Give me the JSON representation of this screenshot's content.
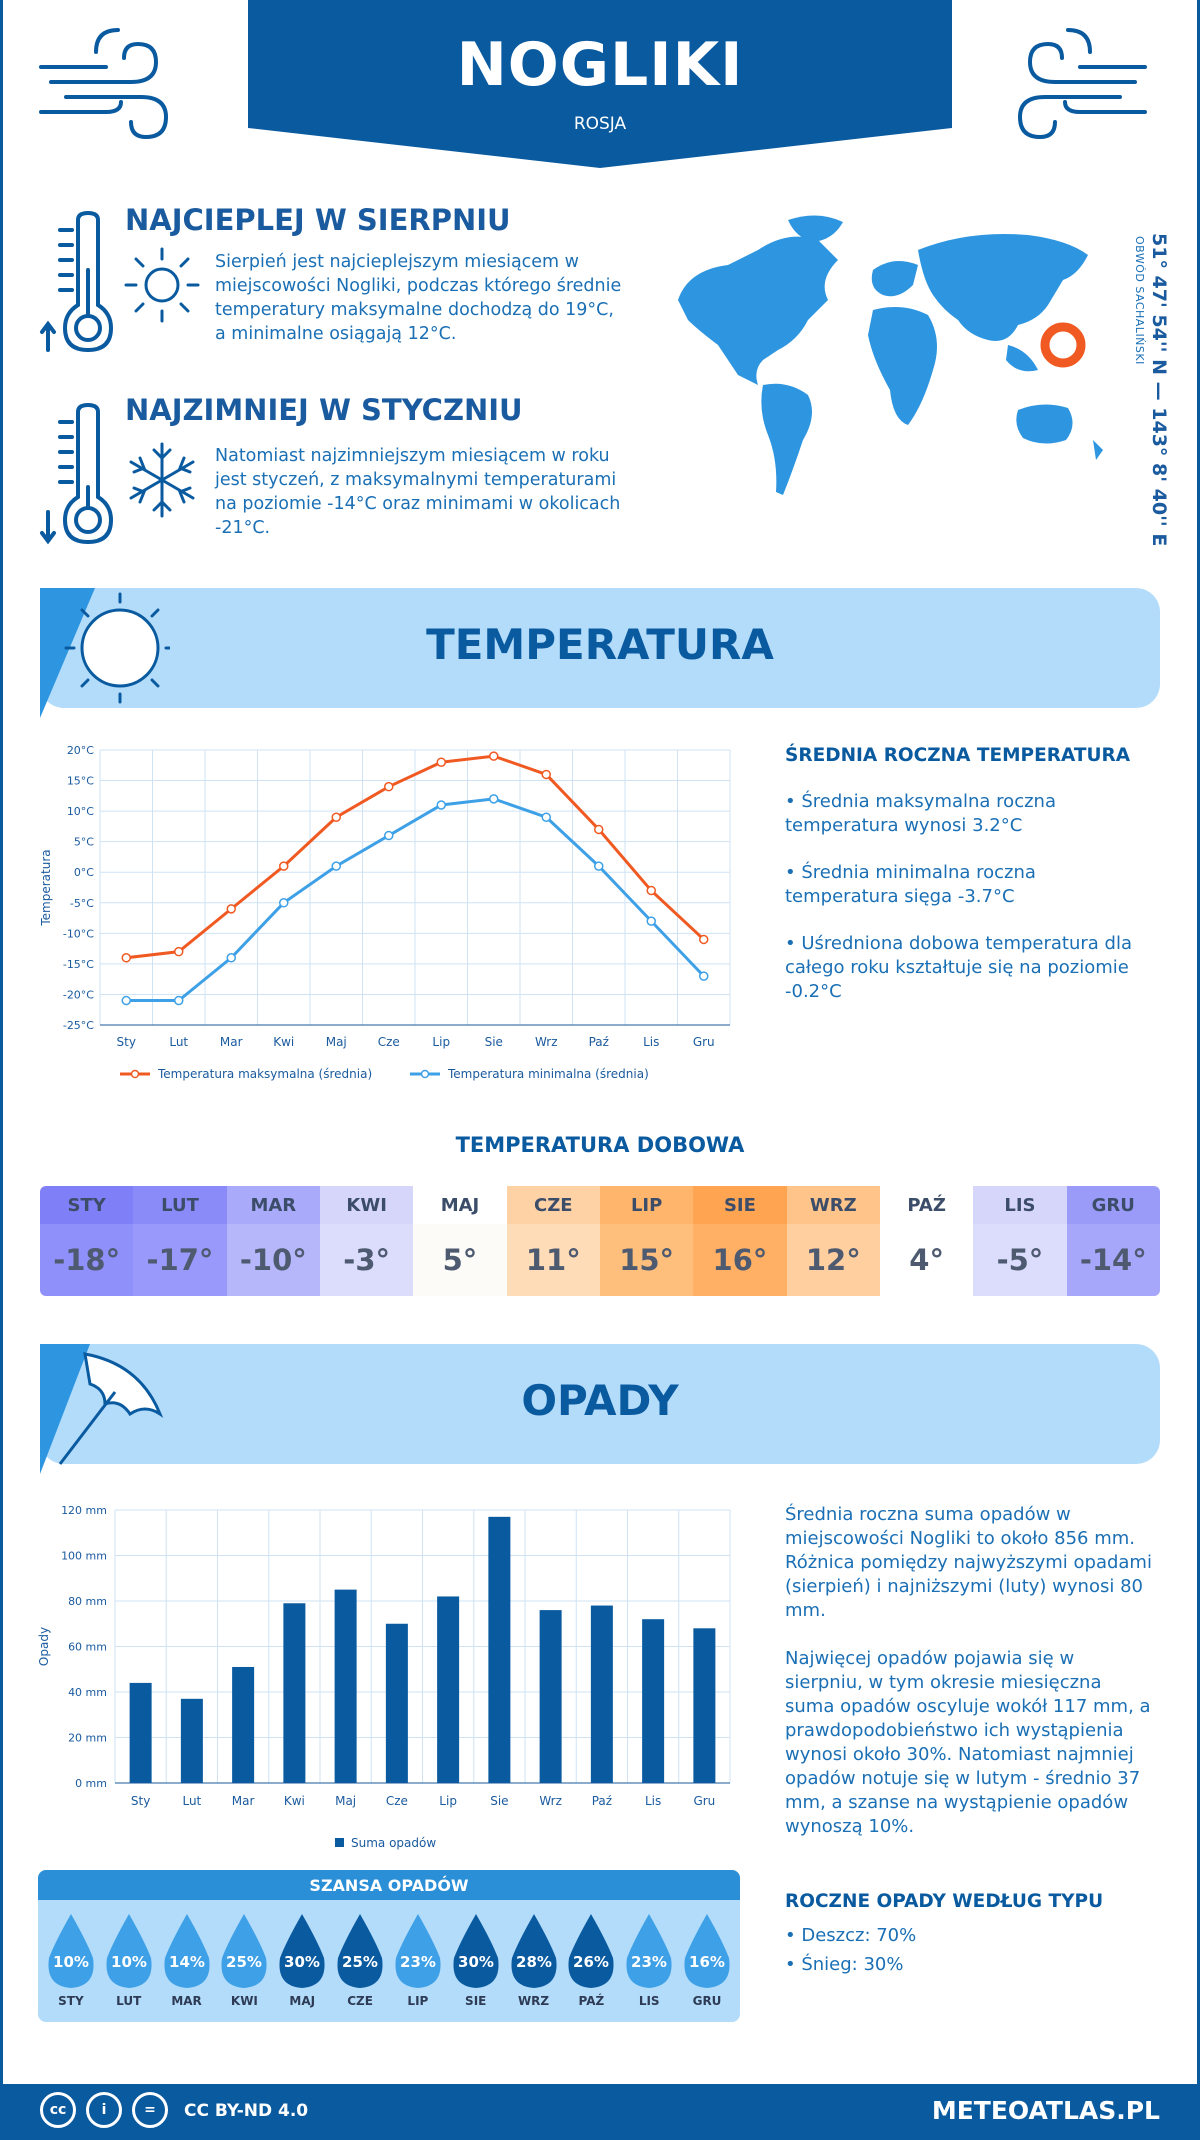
{
  "header": {
    "city": "NOGLIKI",
    "country": "ROSJA"
  },
  "warmest": {
    "title": "NAJCIEPLEJ W SIERPNIU",
    "text": "Sierpień jest najcieplejszym miesiącem w miejscowości Nogliki, podczas którego średnie temperatury maksymalne dochodzą do 19°C, a minimalne osiągają 12°C."
  },
  "coldest": {
    "title": "NAJZIMNIEJ W STYCZNIU",
    "text": "Natomiast najzimniejszym miesiącem w roku jest styczeń, z maksymalnymi temperaturami na poziomie -14°C oraz minimami w okolicach -21°C."
  },
  "location": {
    "coords": "51° 47' 54'' N — 143° 8' 40'' E",
    "region": "OBWÓD SACHALIŃSKI"
  },
  "temperature": {
    "title": "TEMPERATURA",
    "side_title": "ŚREDNIA ROCZNA TEMPERATURA",
    "bullets": [
      "• Średnia maksymalna roczna temperatura wynosi 3.2°C",
      "• Średnia minimalna roczna temperatura sięga -3.7°C",
      "• Uśredniona dobowa temperatura dla całego roku kształtuje się na poziomie -0.2°C"
    ]
  },
  "daily": {
    "title": "TEMPERATURA DOBOWA",
    "months": [
      "STY",
      "LUT",
      "MAR",
      "KWI",
      "MAJ",
      "CZE",
      "LIP",
      "SIE",
      "WRZ",
      "PAŹ",
      "LIS",
      "GRU"
    ],
    "values": [
      "-18°",
      "-17°",
      "-10°",
      "-3°",
      "5°",
      "11°",
      "15°",
      "16°",
      "12°",
      "4°",
      "-5°",
      "-14°"
    ],
    "head_colors": [
      "#7f80f8",
      "#8a8bf9",
      "#a9aaf9",
      "#d6d6fb",
      "#ffffff",
      "#ffd2a6",
      "#ffb56b",
      "#ffa552",
      "#ffc48a",
      "#ffffff",
      "#d6d6fb",
      "#9a9bf9"
    ],
    "cell_colors": [
      "#8f90f9",
      "#9899fa",
      "#b6b7fa",
      "#dcdcfc",
      "#fdfbf8",
      "#ffdcb8",
      "#ffbf7c",
      "#ffb064",
      "#ffcfa0",
      "#ffffff",
      "#dcdcfc",
      "#a6a7fa"
    ]
  },
  "precip": {
    "title": "OPADY",
    "para1": "Średnia roczna suma opadów w miejscowości Nogliki to około 856 mm. Różnica pomiędzy najwyższymi opadami (sierpień) i najniższymi (luty) wynosi 80 mm.",
    "para2": "Najwięcej opadów pojawia się w sierpniu, w tym okresie miesięczna suma opadów oscyluje wokół 117 mm, a prawdopodobieństwo ich wystąpienia wynosi około 30%. Natomiast najmniej opadów notuje się w lutym - średnio 37 mm, a szanse na wystąpienie opadów wynoszą 10%.",
    "types_title": "ROCZNE OPADY WEDŁUG TYPU",
    "types": [
      "• Deszcz: 70%",
      "• Śnieg: 30%"
    ],
    "chance_title": "SZANSA OPADÓW",
    "chance_values": [
      "10%",
      "10%",
      "14%",
      "25%",
      "30%",
      "25%",
      "23%",
      "30%",
      "28%",
      "26%",
      "23%",
      "16%"
    ],
    "chance_months": [
      "STY",
      "LUT",
      "MAR",
      "KWI",
      "MAJ",
      "CZE",
      "LIP",
      "SIE",
      "WRZ",
      "PAŹ",
      "LIS",
      "GRU"
    ],
    "chance_colors": [
      "#3ea0e6",
      "#3ea0e6",
      "#3ea0e6",
      "#3ea0e6",
      "#0a5aa0",
      "#0a5aa0",
      "#3ea0e6",
      "#0a5aa0",
      "#0a5aa0",
      "#0a5aa0",
      "#3ea0e6",
      "#3ea0e6"
    ]
  },
  "footer": {
    "license": "CC BY-ND 4.0",
    "site": "METEOATLAS.PL",
    "cc_icons": [
      "cc",
      "i",
      "="
    ]
  },
  "chart_data": [
    {
      "type": "line",
      "categories": [
        "Sty",
        "Lut",
        "Mar",
        "Kwi",
        "Maj",
        "Cze",
        "Lip",
        "Sie",
        "Wrz",
        "Paź",
        "Lis",
        "Gru"
      ],
      "series": [
        {
          "name": "Temperatura maksymalna (średnia)",
          "color": "#f05a22",
          "values": [
            -14,
            -13,
            -6,
            1,
            9,
            14,
            18,
            19,
            16,
            7,
            -3,
            -11
          ]
        },
        {
          "name": "Temperatura minimalna (średnia)",
          "color": "#3ea0e6",
          "values": [
            -21,
            -21,
            -14,
            -5,
            1,
            6,
            11,
            12,
            9,
            1,
            -8,
            -17
          ]
        }
      ],
      "ylabel": "Temperatura",
      "ylim": [
        -25,
        20
      ],
      "yticks": [
        "20°C",
        "15°C",
        "10°C",
        "5°C",
        "0°C",
        "-5°C",
        "-10°C",
        "-15°C",
        "-20°C",
        "-25°C"
      ],
      "grid": true,
      "legend": "bottom"
    },
    {
      "type": "bar",
      "categories": [
        "Sty",
        "Lut",
        "Mar",
        "Kwi",
        "Maj",
        "Cze",
        "Lip",
        "Sie",
        "Wrz",
        "Paź",
        "Lis",
        "Gru"
      ],
      "series": [
        {
          "name": "Suma opadów",
          "color": "#0a5aa0",
          "values": [
            44,
            37,
            51,
            79,
            85,
            70,
            82,
            117,
            76,
            78,
            72,
            68
          ]
        }
      ],
      "ylabel": "Opady",
      "ylim": [
        0,
        120
      ],
      "yticks": [
        "120 mm",
        "100 mm",
        "80 mm",
        "60 mm",
        "40 mm",
        "20 mm",
        "0 mm"
      ],
      "grid": true,
      "legend": "bottom"
    }
  ]
}
